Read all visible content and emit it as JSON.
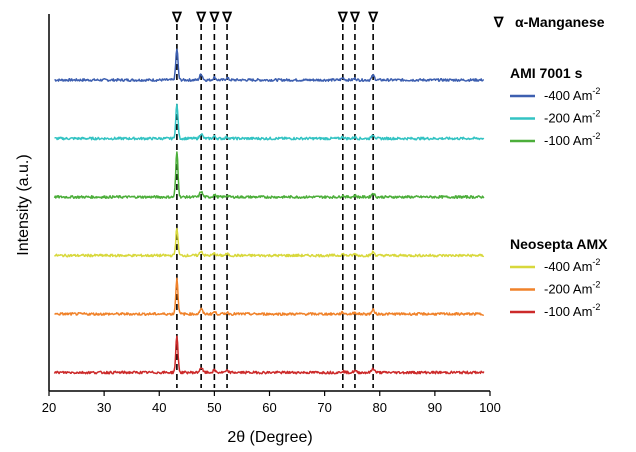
{
  "chart_data": {
    "type": "line",
    "xlabel": "2θ (Degree)",
    "ylabel": "Intensity (a.u.)",
    "xlim": [
      20,
      100
    ],
    "x_ticks": [
      20,
      30,
      40,
      50,
      60,
      70,
      80,
      90,
      100
    ],
    "y_ticks_shown": false,
    "grid": false,
    "marker_legend": {
      "symbol": "∇",
      "label": "α-Manganese"
    },
    "marker_positions": [
      43.2,
      47.6,
      50.0,
      52.3,
      73.3,
      75.5,
      78.8
    ],
    "legend_groups": [
      {
        "title": "AMI 7001 s",
        "entries": [
          {
            "label": "-400 Am",
            "superscript": "-2",
            "color": "#3d5fb0"
          },
          {
            "label": "-200 Am",
            "superscript": "-2",
            "color": "#33c3c3"
          },
          {
            "label": "-100 Am",
            "superscript": "-2",
            "color": "#4cae3a"
          }
        ]
      },
      {
        "title": "Neosepta AMX",
        "entries": [
          {
            "label": "-400 Am",
            "superscript": "-2",
            "color": "#d8d83c"
          },
          {
            "label": "-200 Am",
            "superscript": "-2",
            "color": "#f0822a"
          },
          {
            "label": "-100 Am",
            "superscript": "-2",
            "color": "#cc2a2a"
          }
        ]
      }
    ],
    "series": [
      {
        "group": "AMI 7001 s",
        "label": "-400 Am-2",
        "color": "#3d5fb0",
        "offset": 5,
        "peaks": [
          [
            43.2,
            0.62
          ],
          [
            47.6,
            0.12
          ],
          [
            50.0,
            0.05
          ],
          [
            52.3,
            0.04
          ],
          [
            73.3,
            0.04
          ],
          [
            75.5,
            0.03
          ],
          [
            78.8,
            0.09
          ]
        ]
      },
      {
        "group": "AMI 7001 s",
        "label": "-200 Am-2",
        "color": "#33c3c3",
        "offset": 4,
        "peaks": [
          [
            43.2,
            0.68
          ],
          [
            47.6,
            0.1
          ],
          [
            50.0,
            0.04
          ],
          [
            52.3,
            0.03
          ],
          [
            73.3,
            0.03
          ],
          [
            75.5,
            0.03
          ],
          [
            78.8,
            0.08
          ]
        ]
      },
      {
        "group": "AMI 7001 s",
        "label": "-100 Am-2",
        "color": "#4cae3a",
        "offset": 3,
        "peaks": [
          [
            43.2,
            0.9
          ],
          [
            47.6,
            0.11
          ],
          [
            50.0,
            0.04
          ],
          [
            52.3,
            0.03
          ],
          [
            73.3,
            0.03
          ],
          [
            75.5,
            0.03
          ],
          [
            78.8,
            0.08
          ]
        ]
      },
      {
        "group": "Neosepta AMX",
        "label": "-400 Am-2",
        "color": "#d8d83c",
        "offset": 2,
        "peaks": [
          [
            43.2,
            0.55
          ],
          [
            47.6,
            0.09
          ],
          [
            50.0,
            0.04
          ],
          [
            52.3,
            0.03
          ],
          [
            73.3,
            0.03
          ],
          [
            75.5,
            0.03
          ],
          [
            78.8,
            0.07
          ]
        ]
      },
      {
        "group": "Neosepta AMX",
        "label": "-200 Am-2",
        "color": "#f0822a",
        "offset": 1,
        "peaks": [
          [
            43.2,
            0.7
          ],
          [
            47.6,
            0.1
          ],
          [
            50.0,
            0.04
          ],
          [
            52.3,
            0.03
          ],
          [
            73.3,
            0.03
          ],
          [
            75.5,
            0.03
          ],
          [
            78.8,
            0.08
          ]
        ]
      },
      {
        "group": "Neosepta AMX",
        "label": "-100 Am-2",
        "color": "#cc2a2a",
        "offset": 0,
        "peaks": [
          [
            43.2,
            0.72
          ],
          [
            47.6,
            0.1
          ],
          [
            50.0,
            0.04
          ],
          [
            52.3,
            0.03
          ],
          [
            73.3,
            0.03
          ],
          [
            75.5,
            0.03
          ],
          [
            78.8,
            0.08
          ]
        ]
      }
    ]
  }
}
